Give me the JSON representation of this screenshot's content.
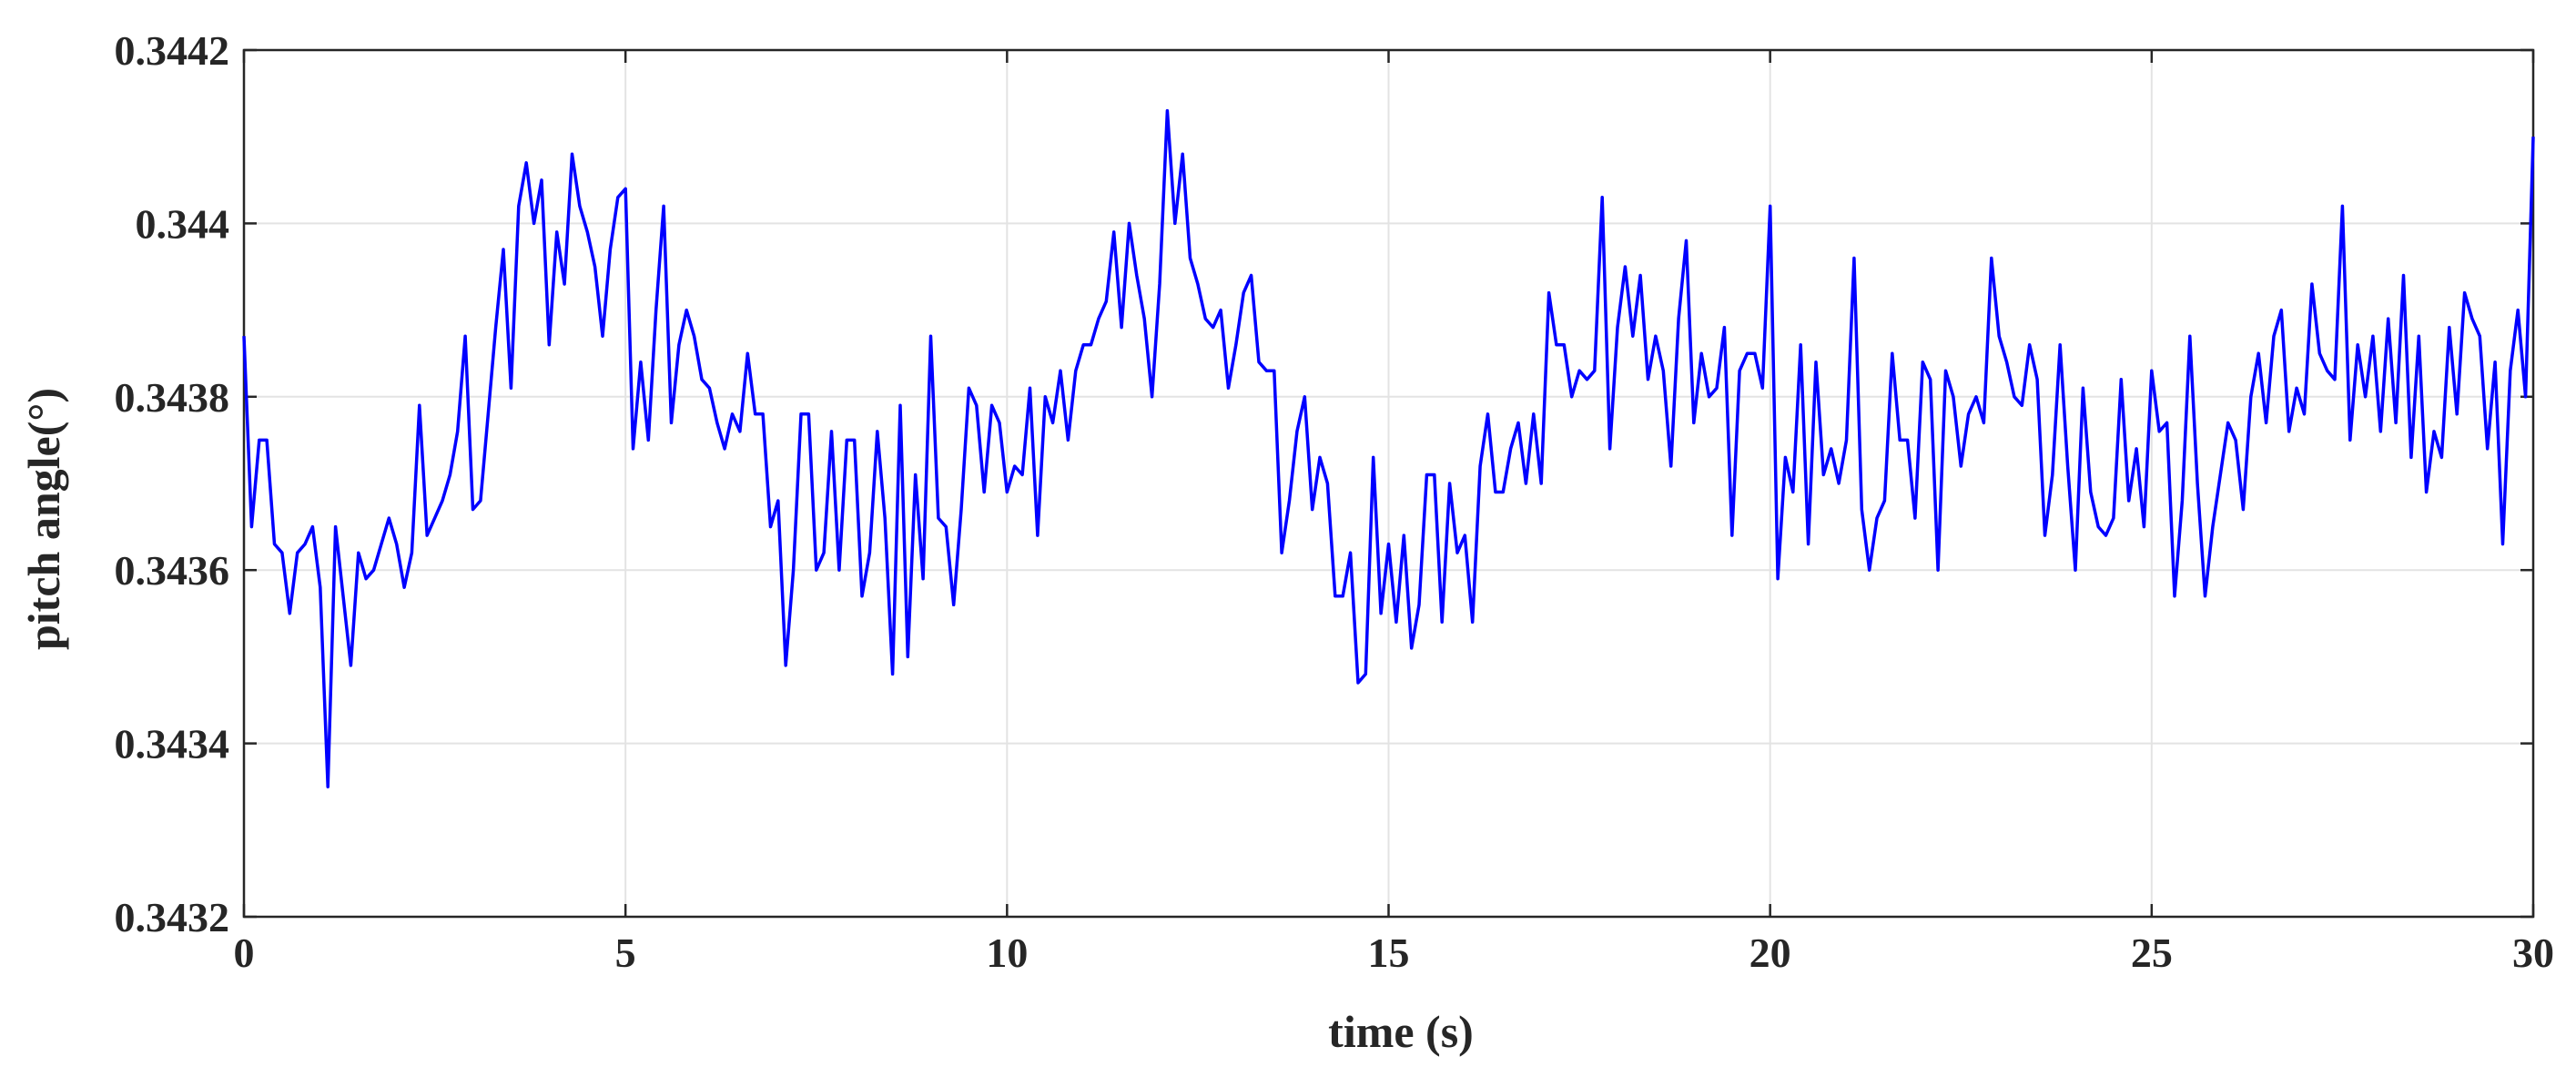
{
  "chart_data": {
    "type": "line",
    "title": "",
    "xlabel": "time (s)",
    "ylabel": "pitch angle(°)",
    "xlim": [
      0,
      30
    ],
    "ylim": [
      0.3432,
      0.3442
    ],
    "xticks": [
      0,
      5,
      10,
      15,
      20,
      25,
      30
    ],
    "xtick_labels": [
      "0",
      "5",
      "10",
      "15",
      "20",
      "25",
      "30"
    ],
    "yticks": [
      0.3432,
      0.3434,
      0.3436,
      0.3438,
      0.344,
      0.3442
    ],
    "ytick_labels": [
      "0.3432",
      "0.3434",
      "0.3436",
      "0.3438",
      "0.344",
      "0.3442"
    ],
    "grid": true,
    "line_color": "#0000ff",
    "series": [
      {
        "x": [
          0,
          0.1,
          0.2,
          0.3,
          0.4,
          0.5,
          0.6,
          0.7,
          0.8,
          0.9,
          1.0,
          1.1,
          1.2,
          1.3,
          1.4,
          1.5,
          1.6,
          1.7,
          1.8,
          1.9,
          2.0,
          2.1,
          2.2,
          2.3,
          2.4,
          2.5,
          2.6,
          2.7,
          2.8,
          2.9,
          3.0,
          3.1,
          3.2,
          3.3,
          3.4,
          3.5,
          3.6,
          3.7,
          3.8,
          3.9,
          4.0,
          4.1,
          4.2,
          4.3,
          4.4,
          4.5,
          4.6,
          4.7,
          4.8,
          4.9,
          5.0,
          5.1,
          5.2,
          5.3,
          5.4,
          5.5,
          5.6,
          5.7,
          5.8,
          5.9,
          6.0,
          6.1,
          6.2,
          6.3,
          6.4,
          6.5,
          6.6,
          6.7,
          6.8,
          6.9,
          7.0,
          7.1,
          7.2,
          7.3,
          7.4,
          7.5,
          7.6,
          7.7,
          7.8,
          7.9,
          8.0,
          8.1,
          8.2,
          8.3,
          8.4,
          8.5,
          8.6,
          8.7,
          8.8,
          8.9,
          9.0,
          9.1,
          9.2,
          9.3,
          9.4,
          9.5,
          9.6,
          9.7,
          9.8,
          9.9,
          10.0,
          10.1,
          10.2,
          10.3,
          10.4,
          10.5,
          10.6,
          10.7,
          10.8,
          10.9,
          11.0,
          11.1,
          11.2,
          11.3,
          11.4,
          11.5,
          11.6,
          11.7,
          11.8,
          11.9,
          12.0,
          12.1,
          12.2,
          12.3,
          12.4,
          12.5,
          12.6,
          12.7,
          12.8,
          12.9,
          13.0,
          13.1,
          13.2,
          13.3,
          13.4,
          13.5,
          13.6,
          13.7,
          13.8,
          13.9,
          14.0,
          14.1,
          14.2,
          14.3,
          14.4,
          14.5,
          14.6,
          14.7,
          14.8,
          14.9,
          15.0,
          15.1,
          15.2,
          15.3,
          15.4,
          15.5,
          15.6,
          15.7,
          15.8,
          15.9,
          16.0,
          16.1,
          16.2,
          16.3,
          16.4,
          16.5,
          16.6,
          16.7,
          16.8,
          16.9,
          17.0,
          17.1,
          17.2,
          17.3,
          17.4,
          17.5,
          17.6,
          17.7,
          17.8,
          17.9,
          18.0,
          18.1,
          18.2,
          18.3,
          18.4,
          18.5,
          18.6,
          18.7,
          18.8,
          18.9,
          19.0,
          19.1,
          19.2,
          19.3,
          19.4,
          19.5,
          19.6,
          19.7,
          19.8,
          19.9,
          20.0,
          20.1,
          20.2,
          20.3,
          20.4,
          20.5,
          20.6,
          20.7,
          20.8,
          20.9,
          21.0,
          21.1,
          21.2,
          21.3,
          21.4,
          21.5,
          21.6,
          21.7,
          21.8,
          21.9,
          22.0,
          22.1,
          22.2,
          22.3,
          22.4,
          22.5,
          22.6,
          22.7,
          22.8,
          22.9,
          23.0,
          23.1,
          23.2,
          23.3,
          23.4,
          23.5,
          23.6,
          23.7,
          23.8,
          23.9,
          24.0,
          24.1,
          24.2,
          24.3,
          24.4,
          24.5,
          24.6,
          24.7,
          24.8,
          24.9,
          25.0,
          25.1,
          25.2,
          25.3,
          25.4,
          25.5,
          25.6,
          25.7,
          25.8,
          25.9,
          26.0,
          26.1,
          26.2,
          26.3,
          26.4,
          26.5,
          26.6,
          26.7,
          26.8,
          26.9,
          27.0,
          27.1,
          27.2,
          27.3,
          27.4,
          27.5,
          27.6,
          27.7,
          27.8,
          27.9,
          28.0,
          28.1,
          28.2,
          28.3,
          28.4,
          28.5,
          28.6,
          28.7,
          28.8,
          28.9,
          29.0,
          29.1,
          29.2,
          29.3,
          29.4,
          29.5,
          29.6,
          29.7,
          29.8,
          29.9,
          30.0
        ],
        "y": [
          0.34387,
          0.34365,
          0.34375,
          0.34375,
          0.34363,
          0.34362,
          0.34355,
          0.34362,
          0.34363,
          0.34365,
          0.34358,
          0.34335,
          0.34365,
          0.34357,
          0.34349,
          0.34362,
          0.34359,
          0.3436,
          0.34363,
          0.34366,
          0.34363,
          0.34358,
          0.34362,
          0.34379,
          0.34364,
          0.34366,
          0.34368,
          0.34371,
          0.34376,
          0.34387,
          0.34367,
          0.34368,
          0.34378,
          0.34388,
          0.34397,
          0.34381,
          0.34402,
          0.34407,
          0.344,
          0.34405,
          0.34386,
          0.34399,
          0.34393,
          0.34408,
          0.34402,
          0.34399,
          0.34395,
          0.34387,
          0.34397,
          0.34403,
          0.34404,
          0.34374,
          0.34384,
          0.34375,
          0.3439,
          0.34402,
          0.34377,
          0.34386,
          0.3439,
          0.34387,
          0.34382,
          0.34381,
          0.34377,
          0.34374,
          0.34378,
          0.34376,
          0.34385,
          0.34378,
          0.34378,
          0.34365,
          0.34368,
          0.34349,
          0.3436,
          0.34378,
          0.34378,
          0.3436,
          0.34362,
          0.34376,
          0.3436,
          0.34375,
          0.34375,
          0.34357,
          0.34362,
          0.34376,
          0.34366,
          0.34348,
          0.34379,
          0.3435,
          0.34371,
          0.34359,
          0.34387,
          0.34366,
          0.34365,
          0.34356,
          0.34367,
          0.34381,
          0.34379,
          0.34369,
          0.34379,
          0.34377,
          0.34369,
          0.34372,
          0.34371,
          0.34381,
          0.34364,
          0.3438,
          0.34377,
          0.34383,
          0.34375,
          0.34383,
          0.34386,
          0.34386,
          0.34389,
          0.34391,
          0.34399,
          0.34388,
          0.344,
          0.34394,
          0.34389,
          0.3438,
          0.34393,
          0.34413,
          0.344,
          0.34408,
          0.34396,
          0.34393,
          0.34389,
          0.34388,
          0.3439,
          0.34381,
          0.34386,
          0.34392,
          0.34394,
          0.34384,
          0.34383,
          0.34383,
          0.34362,
          0.34368,
          0.34376,
          0.3438,
          0.34367,
          0.34373,
          0.3437,
          0.34357,
          0.34357,
          0.34362,
          0.34347,
          0.34348,
          0.34373,
          0.34355,
          0.34363,
          0.34354,
          0.34364,
          0.34351,
          0.34356,
          0.34371,
          0.34371,
          0.34354,
          0.3437,
          0.34362,
          0.34364,
          0.34354,
          0.34372,
          0.34378,
          0.34369,
          0.34369,
          0.34374,
          0.34377,
          0.3437,
          0.34378,
          0.3437,
          0.34392,
          0.34386,
          0.34386,
          0.3438,
          0.34383,
          0.34382,
          0.34383,
          0.34403,
          0.34374,
          0.34388,
          0.34395,
          0.34387,
          0.34394,
          0.34382,
          0.34387,
          0.34383,
          0.34372,
          0.34389,
          0.34398,
          0.34377,
          0.34385,
          0.3438,
          0.34381,
          0.34388,
          0.34364,
          0.34383,
          0.34385,
          0.34385,
          0.34381,
          0.34402,
          0.34359,
          0.34373,
          0.34369,
          0.34386,
          0.34363,
          0.34384,
          0.34371,
          0.34374,
          0.3437,
          0.34375,
          0.34396,
          0.34367,
          0.3436,
          0.34366,
          0.34368,
          0.34385,
          0.34375,
          0.34375,
          0.34366,
          0.34384,
          0.34382,
          0.3436,
          0.34383,
          0.3438,
          0.34372,
          0.34378,
          0.3438,
          0.34377,
          0.34396,
          0.34387,
          0.34384,
          0.3438,
          0.34379,
          0.34386,
          0.34382,
          0.34364,
          0.34371,
          0.34386,
          0.34372,
          0.3436,
          0.34381,
          0.34369,
          0.34365,
          0.34364,
          0.34366,
          0.34382,
          0.34368,
          0.34374,
          0.34365,
          0.34383,
          0.34376,
          0.34377,
          0.34357,
          0.34368,
          0.34387,
          0.3437,
          0.34357,
          0.34365,
          0.34371,
          0.34377,
          0.34375,
          0.34367,
          0.3438,
          0.34385,
          0.34377,
          0.34387,
          0.3439,
          0.34376,
          0.34381,
          0.34378,
          0.34393,
          0.34385,
          0.34383,
          0.34382,
          0.34402,
          0.34375,
          0.34386,
          0.3438,
          0.34387,
          0.34376,
          0.34389,
          0.34377,
          0.34394,
          0.34373,
          0.34387,
          0.34369,
          0.34376,
          0.34373,
          0.34388,
          0.34378,
          0.34392,
          0.34389,
          0.34387,
          0.34374,
          0.34384,
          0.34363,
          0.34383,
          0.3439,
          0.3438,
          0.3441
        ]
      }
    ]
  }
}
